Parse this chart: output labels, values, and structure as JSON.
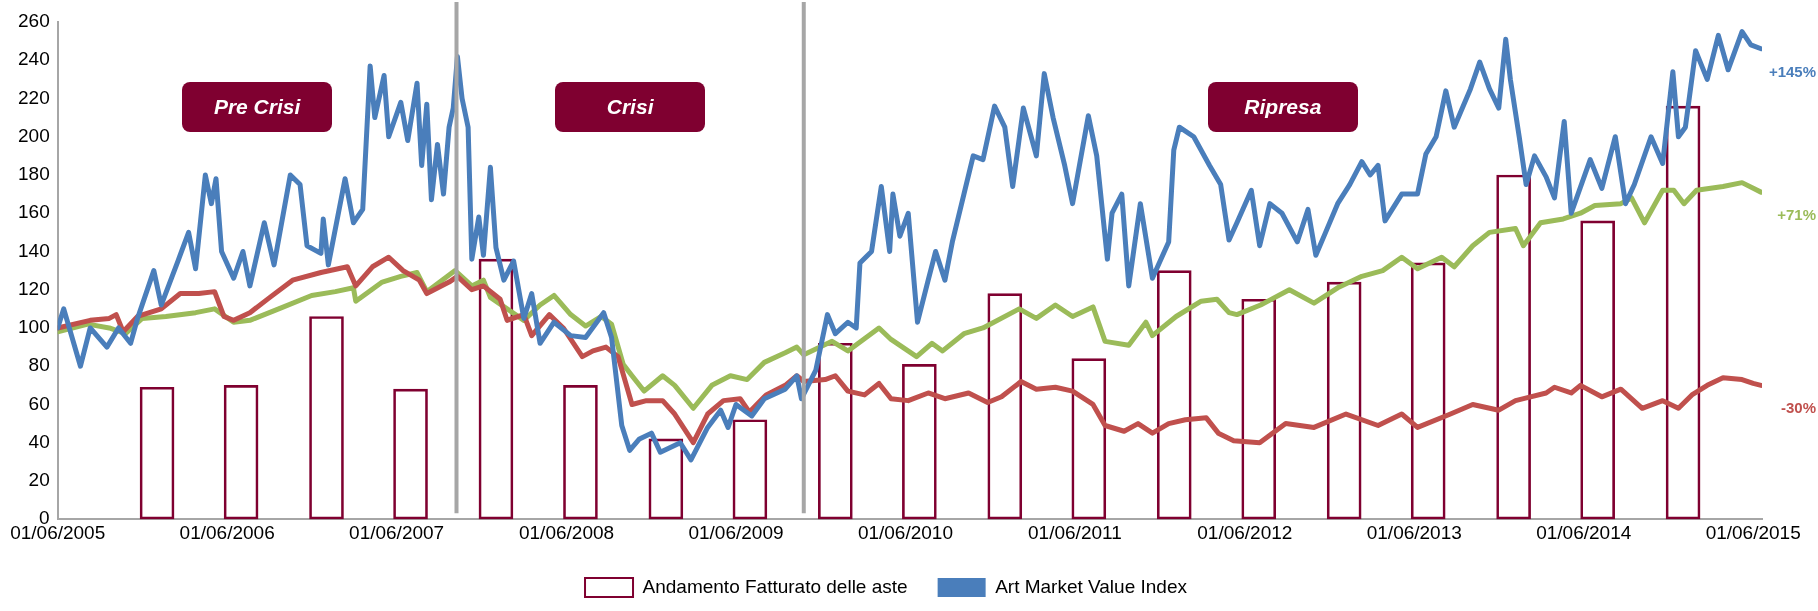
{
  "chart_data": {
    "type": "line",
    "xlim": [
      "2005-06-01",
      "2015-06-20"
    ],
    "ylim": [
      0,
      260
    ],
    "yticks": [
      0,
      20,
      40,
      60,
      80,
      100,
      120,
      140,
      160,
      180,
      200,
      220,
      240,
      260
    ],
    "xticks": [
      {
        "value": "2005-06-01",
        "label": "01/06/2005"
      },
      {
        "value": "2006-06-01",
        "label": "01/06/2006"
      },
      {
        "value": "2007-06-01",
        "label": "01/06/2007"
      },
      {
        "value": "2008-06-01",
        "label": "01/06/2008"
      },
      {
        "value": "2009-06-01",
        "label": "01/06/2009"
      },
      {
        "value": "2010-06-01",
        "label": "01/06/2010"
      },
      {
        "value": "2011-06-01",
        "label": "01/06/2011"
      },
      {
        "value": "2012-06-01",
        "label": "01/06/2012"
      },
      {
        "value": "2013-06-01",
        "label": "01/06/2013"
      },
      {
        "value": "2014-06-01",
        "label": "01/06/2014"
      },
      {
        "value": "2015-06-01",
        "label": "01/06/2015"
      }
    ],
    "grid": false,
    "legend": "bottom",
    "marker": "none",
    "series": [
      {
        "type": "bar",
        "name": "Andamento Fatturato delle aste",
        "color": "#7f0030",
        "x": [
          "2006-01-01",
          "2006-07-01",
          "2007-01-01",
          "2007-07-01",
          "2008-01-01",
          "2008-07-01",
          "2009-01-01",
          "2009-07-01",
          "2010-01-01",
          "2010-07-01",
          "2011-01-01",
          "2011-07-01",
          "2012-01-01",
          "2012-07-01",
          "2013-01-01",
          "2013-07-01",
          "2014-01-01",
          "2014-07-01",
          "2015-01-01"
        ],
        "values": [
          69,
          70,
          106,
          68,
          136,
          70,
          42,
          52,
          92,
          81,
          118,
          84,
          130,
          115,
          124,
          134,
          180,
          156,
          216
        ]
      },
      {
        "name": "Art Market Value Index",
        "color": "#4a7ebb",
        "x": [
          "2005-06-01",
          "2005-06-14",
          "2005-07-20",
          "2005-08-10",
          "2005-09-15",
          "2005-10-10",
          "2005-11-05",
          "2005-11-20",
          "2005-12-25",
          "2006-01-10",
          "2006-02-15",
          "2006-03-10",
          "2006-03-25",
          "2006-04-15",
          "2006-04-28",
          "2006-05-08",
          "2006-05-20",
          "2006-06-15",
          "2006-07-05",
          "2006-07-20",
          "2006-08-20",
          "2006-09-10",
          "2006-10-15",
          "2006-11-05",
          "2006-11-20",
          "2006-12-20",
          "2006-12-25",
          "2007-01-05",
          "2007-02-10",
          "2007-02-28",
          "2007-03-20",
          "2007-04-05",
          "2007-04-15",
          "2007-05-05",
          "2007-05-15",
          "2007-06-10",
          "2007-06-25",
          "2007-07-15",
          "2007-07-25",
          "2007-08-05",
          "2007-08-15",
          "2007-08-28",
          "2007-09-10",
          "2007-09-22",
          "2007-10-01",
          "2007-10-10",
          "2007-10-20",
          "2007-11-02",
          "2007-11-10",
          "2007-11-25",
          "2007-12-05",
          "2007-12-20",
          "2008-01-01",
          "2008-01-18",
          "2008-02-08",
          "2008-03-01",
          "2008-03-18",
          "2008-04-05",
          "2008-05-05",
          "2008-06-10",
          "2008-07-12",
          "2008-08-20",
          "2008-09-06",
          "2008-09-28",
          "2008-10-15",
          "2008-11-05",
          "2008-12-01",
          "2008-12-20",
          "2009-02-01",
          "2009-02-24",
          "2009-04-01",
          "2009-04-29",
          "2009-05-15",
          "2009-06-01",
          "2009-07-05",
          "2009-08-01",
          "2009-09-15",
          "2009-10-10",
          "2009-10-20",
          "2009-11-20",
          "2009-12-15",
          "2010-01-01",
          "2010-01-28",
          "2010-02-15",
          "2010-02-23",
          "2010-03-20",
          "2010-04-10",
          "2010-04-28",
          "2010-05-05",
          "2010-05-20",
          "2010-06-07",
          "2010-06-27",
          "2010-07-20",
          "2010-08-05",
          "2010-08-25",
          "2010-09-10",
          "2010-10-05",
          "2010-10-25",
          "2010-11-15",
          "2010-12-10",
          "2011-01-01",
          "2011-01-18",
          "2011-02-10",
          "2011-03-10",
          "2011-03-27",
          "2011-04-15",
          "2011-05-10",
          "2011-05-27",
          "2011-06-30",
          "2011-07-18",
          "2011-08-10",
          "2011-08-20",
          "2011-09-10",
          "2011-09-25",
          "2011-10-20",
          "2011-11-15",
          "2011-12-20",
          "2011-12-31",
          "2012-01-12",
          "2012-02-12",
          "2012-03-17",
          "2012-04-10",
          "2012-04-28",
          "2012-05-15",
          "2012-06-15",
          "2012-07-03",
          "2012-07-25",
          "2012-08-20",
          "2012-09-22",
          "2012-10-15",
          "2012-11-01",
          "2012-11-22",
          "2012-12-18",
          "2013-01-13",
          "2013-02-08",
          "2013-02-26",
          "2013-03-15",
          "2013-03-30",
          "2013-05-05",
          "2013-06-08",
          "2013-06-26",
          "2013-07-18",
          "2013-08-08",
          "2013-08-26",
          "2013-09-30",
          "2013-10-20",
          "2013-11-10",
          "2013-11-30",
          "2013-12-15",
          "2013-12-25",
          "2014-01-13",
          "2014-01-28",
          "2014-02-15",
          "2014-03-12",
          "2014-03-30",
          "2014-04-20",
          "2014-05-05",
          "2014-06-15",
          "2014-07-10",
          "2014-08-08",
          "2014-08-30",
          "2014-09-18",
          "2014-10-24",
          "2014-11-18",
          "2014-12-10",
          "2014-12-22",
          "2015-01-06",
          "2015-01-28",
          "2015-02-22",
          "2015-03-18",
          "2015-04-08",
          "2015-05-08",
          "2015-05-27",
          "2015-06-18"
        ],
        "values": [
          100,
          110,
          80,
          100,
          90,
          100,
          92,
          105,
          130,
          112,
          135,
          150,
          131,
          180,
          165,
          178,
          140,
          126,
          140,
          122,
          155,
          133,
          180,
          175,
          143,
          139,
          157,
          133,
          178,
          155,
          162,
          237,
          210,
          232,
          200,
          218,
          198,
          228,
          185,
          217,
          167,
          196,
          170,
          205,
          215,
          242,
          220,
          205,
          136,
          158,
          138,
          184,
          142,
          125,
          135,
          105,
          118,
          92,
          103,
          96,
          95,
          108,
          95,
          49,
          36,
          42,
          45,
          35,
          40,
          31,
          48,
          57,
          48,
          60,
          54,
          63,
          68,
          75,
          63,
          78,
          107,
          97,
          103,
          100,
          134,
          140,
          174,
          140,
          170,
          148,
          160,
          103,
          125,
          140,
          125,
          145,
          170,
          190,
          188,
          216,
          205,
          174,
          215,
          190,
          233,
          210,
          185,
          165,
          211,
          190,
          136,
          160,
          170,
          122,
          165,
          126,
          145,
          193,
          205,
          200,
          185,
          175,
          146,
          155,
          172,
          143,
          165,
          160,
          145,
          162,
          138,
          150,
          165,
          175,
          187,
          180,
          185,
          156,
          170,
          170,
          191,
          200,
          224,
          205,
          225,
          239,
          225,
          215,
          251,
          230,
          200,
          175,
          190,
          179,
          168,
          208,
          160,
          188,
          173,
          200,
          165,
          175,
          200,
          186,
          234,
          200,
          205,
          245,
          230,
          253,
          235,
          255,
          248,
          246
        ]
      },
      {
        "color": "#c0504d",
        "x": [
          "2005-06-01",
          "2005-08-10",
          "2005-09-20",
          "2005-10-05",
          "2005-10-20",
          "2005-11-20",
          "2006-01-10",
          "2006-02-20",
          "2006-04-01",
          "2006-05-05",
          "2006-05-25",
          "2006-06-15",
          "2006-07-20",
          "2006-09-01",
          "2006-10-20",
          "2006-12-20",
          "2007-02-15",
          "2007-03-05",
          "2007-04-10",
          "2007-05-15",
          "2007-06-15",
          "2007-07-20",
          "2007-08-05",
          "2007-09-22",
          "2007-10-10",
          "2007-11-10",
          "2007-12-05",
          "2008-01-10",
          "2008-01-25",
          "2008-03-01",
          "2008-03-18",
          "2008-04-25",
          "2008-05-25",
          "2008-07-05",
          "2008-07-28",
          "2008-08-25",
          "2008-09-20",
          "2008-10-20",
          "2008-11-20",
          "2008-12-25",
          "2009-01-20",
          "2009-03-01",
          "2009-04-01",
          "2009-05-05",
          "2009-06-10",
          "2009-06-30",
          "2009-08-05",
          "2009-09-15",
          "2009-10-10",
          "2009-10-25",
          "2009-12-10",
          "2010-01-01",
          "2010-01-28",
          "2010-03-05",
          "2010-04-05",
          "2010-05-01",
          "2010-06-07",
          "2010-07-20",
          "2010-08-25",
          "2010-10-15",
          "2010-11-25",
          "2010-12-25",
          "2011-02-05",
          "2011-03-10",
          "2011-04-20",
          "2011-05-27",
          "2011-07-10",
          "2011-08-05",
          "2011-09-15",
          "2011-10-15",
          "2011-11-15",
          "2011-12-20",
          "2012-01-25",
          "2012-03-10",
          "2012-04-05",
          "2012-05-08",
          "2012-07-03",
          "2012-08-28",
          "2012-10-28",
          "2013-01-05",
          "2013-03-15",
          "2013-05-05",
          "2013-06-08",
          "2013-08-18",
          "2013-10-05",
          "2013-11-30",
          "2014-01-05",
          "2014-03-12",
          "2014-03-30",
          "2014-05-05",
          "2014-05-25",
          "2014-07-10",
          "2014-08-20",
          "2014-10-05",
          "2014-11-18",
          "2014-12-22",
          "2015-01-20",
          "2015-02-22",
          "2015-03-28",
          "2015-05-08",
          "2015-06-01",
          "2015-06-18"
        ],
        "values": [
          100,
          104,
          105,
          107,
          98,
          106,
          110,
          118,
          118,
          119,
          106,
          104,
          108,
          116,
          125,
          129,
          132,
          122,
          132,
          137,
          130,
          125,
          118,
          124,
          127,
          120,
          122,
          115,
          104,
          107,
          96,
          107,
          100,
          85,
          88,
          90,
          85,
          60,
          62,
          62,
          55,
          40,
          55,
          62,
          63,
          56,
          65,
          70,
          75,
          72,
          73,
          75,
          67,
          65,
          71,
          63,
          62,
          66,
          63,
          66,
          61,
          64,
          72,
          68,
          69,
          67,
          60,
          49,
          46,
          50,
          45,
          50,
          52,
          53,
          45,
          41,
          40,
          50,
          48,
          55,
          49,
          55,
          48,
          55,
          60,
          57,
          62,
          66,
          69,
          66,
          70,
          64,
          68,
          58,
          62,
          58,
          65,
          70,
          74,
          73,
          71,
          70
        ]
      },
      {
        "color": "#9bbb59",
        "x": [
          "2005-06-01",
          "2005-08-05",
          "2005-09-20",
          "2005-10-25",
          "2005-11-30",
          "2006-01-20",
          "2006-03-25",
          "2006-05-05",
          "2006-06-15",
          "2006-07-20",
          "2006-09-20",
          "2006-11-30",
          "2007-01-20",
          "2007-02-28",
          "2007-03-05",
          "2007-05-01",
          "2007-06-10",
          "2007-07-15",
          "2007-08-05",
          "2007-10-05",
          "2007-11-10",
          "2007-12-05",
          "2007-12-20",
          "2008-01-25",
          "2008-03-01",
          "2008-04-05",
          "2008-05-05",
          "2008-06-10",
          "2008-07-12",
          "2008-08-15",
          "2008-09-06",
          "2008-10-01",
          "2008-10-20",
          "2008-11-15",
          "2008-12-25",
          "2009-01-20",
          "2009-03-01",
          "2009-04-10",
          "2009-05-20",
          "2009-06-25",
          "2009-08-01",
          "2009-09-15",
          "2009-10-10",
          "2009-10-25",
          "2009-12-25",
          "2010-01-28",
          "2010-04-05",
          "2010-05-01",
          "2010-06-25",
          "2010-07-28",
          "2010-08-20",
          "2010-10-05",
          "2010-11-15",
          "2011-02-01",
          "2011-03-10",
          "2011-04-20",
          "2011-05-27",
          "2011-07-10",
          "2011-08-05",
          "2011-09-25",
          "2011-11-01",
          "2011-11-15",
          "2012-01-05",
          "2012-02-28",
          "2012-04-02",
          "2012-04-28",
          "2012-05-15",
          "2012-07-05",
          "2012-09-05",
          "2012-10-28",
          "2012-12-18",
          "2013-02-08",
          "2013-03-25",
          "2013-05-05",
          "2013-06-08",
          "2013-07-30",
          "2013-08-26",
          "2013-10-05",
          "2013-11-10",
          "2014-01-05",
          "2014-01-22",
          "2014-02-28",
          "2014-04-18",
          "2014-05-25",
          "2014-06-25",
          "2014-08-20",
          "2014-09-12",
          "2014-10-10",
          "2014-11-18",
          "2014-12-12",
          "2015-01-03",
          "2015-01-30",
          "2015-03-28",
          "2015-05-08",
          "2015-06-18"
        ],
        "values": [
          98,
          102,
          100,
          97,
          105,
          106,
          108,
          110,
          103,
          104,
          110,
          117,
          119,
          121,
          114,
          124,
          127,
          129,
          119,
          130,
          122,
          125,
          116,
          110,
          104,
          112,
          117,
          107,
          101,
          106,
          102,
          81,
          75,
          67,
          75,
          70,
          58,
          70,
          75,
          73,
          82,
          87,
          90,
          86,
          93,
          88,
          100,
          94,
          85,
          92,
          88,
          97,
          100,
          110,
          105,
          112,
          106,
          111,
          93,
          91,
          103,
          96,
          106,
          114,
          115,
          108,
          107,
          112,
          120,
          113,
          121,
          127,
          130,
          137,
          131,
          137,
          132,
          143,
          150,
          152,
          143,
          155,
          157,
          160,
          164,
          165,
          168,
          155,
          172,
          172,
          165,
          172,
          174,
          176,
          171
        ]
      }
    ],
    "ref_lines": [
      {
        "axis": "x",
        "value": "2007-10-08",
        "color": "#a6a6a6"
      },
      {
        "axis": "x",
        "value": "2009-10-25",
        "color": "#a6a6a6"
      }
    ],
    "annotations": [
      "Pre Crisi",
      "Crisi",
      "Ripresa",
      "+145%",
      "-30%",
      "+71%"
    ]
  }
}
